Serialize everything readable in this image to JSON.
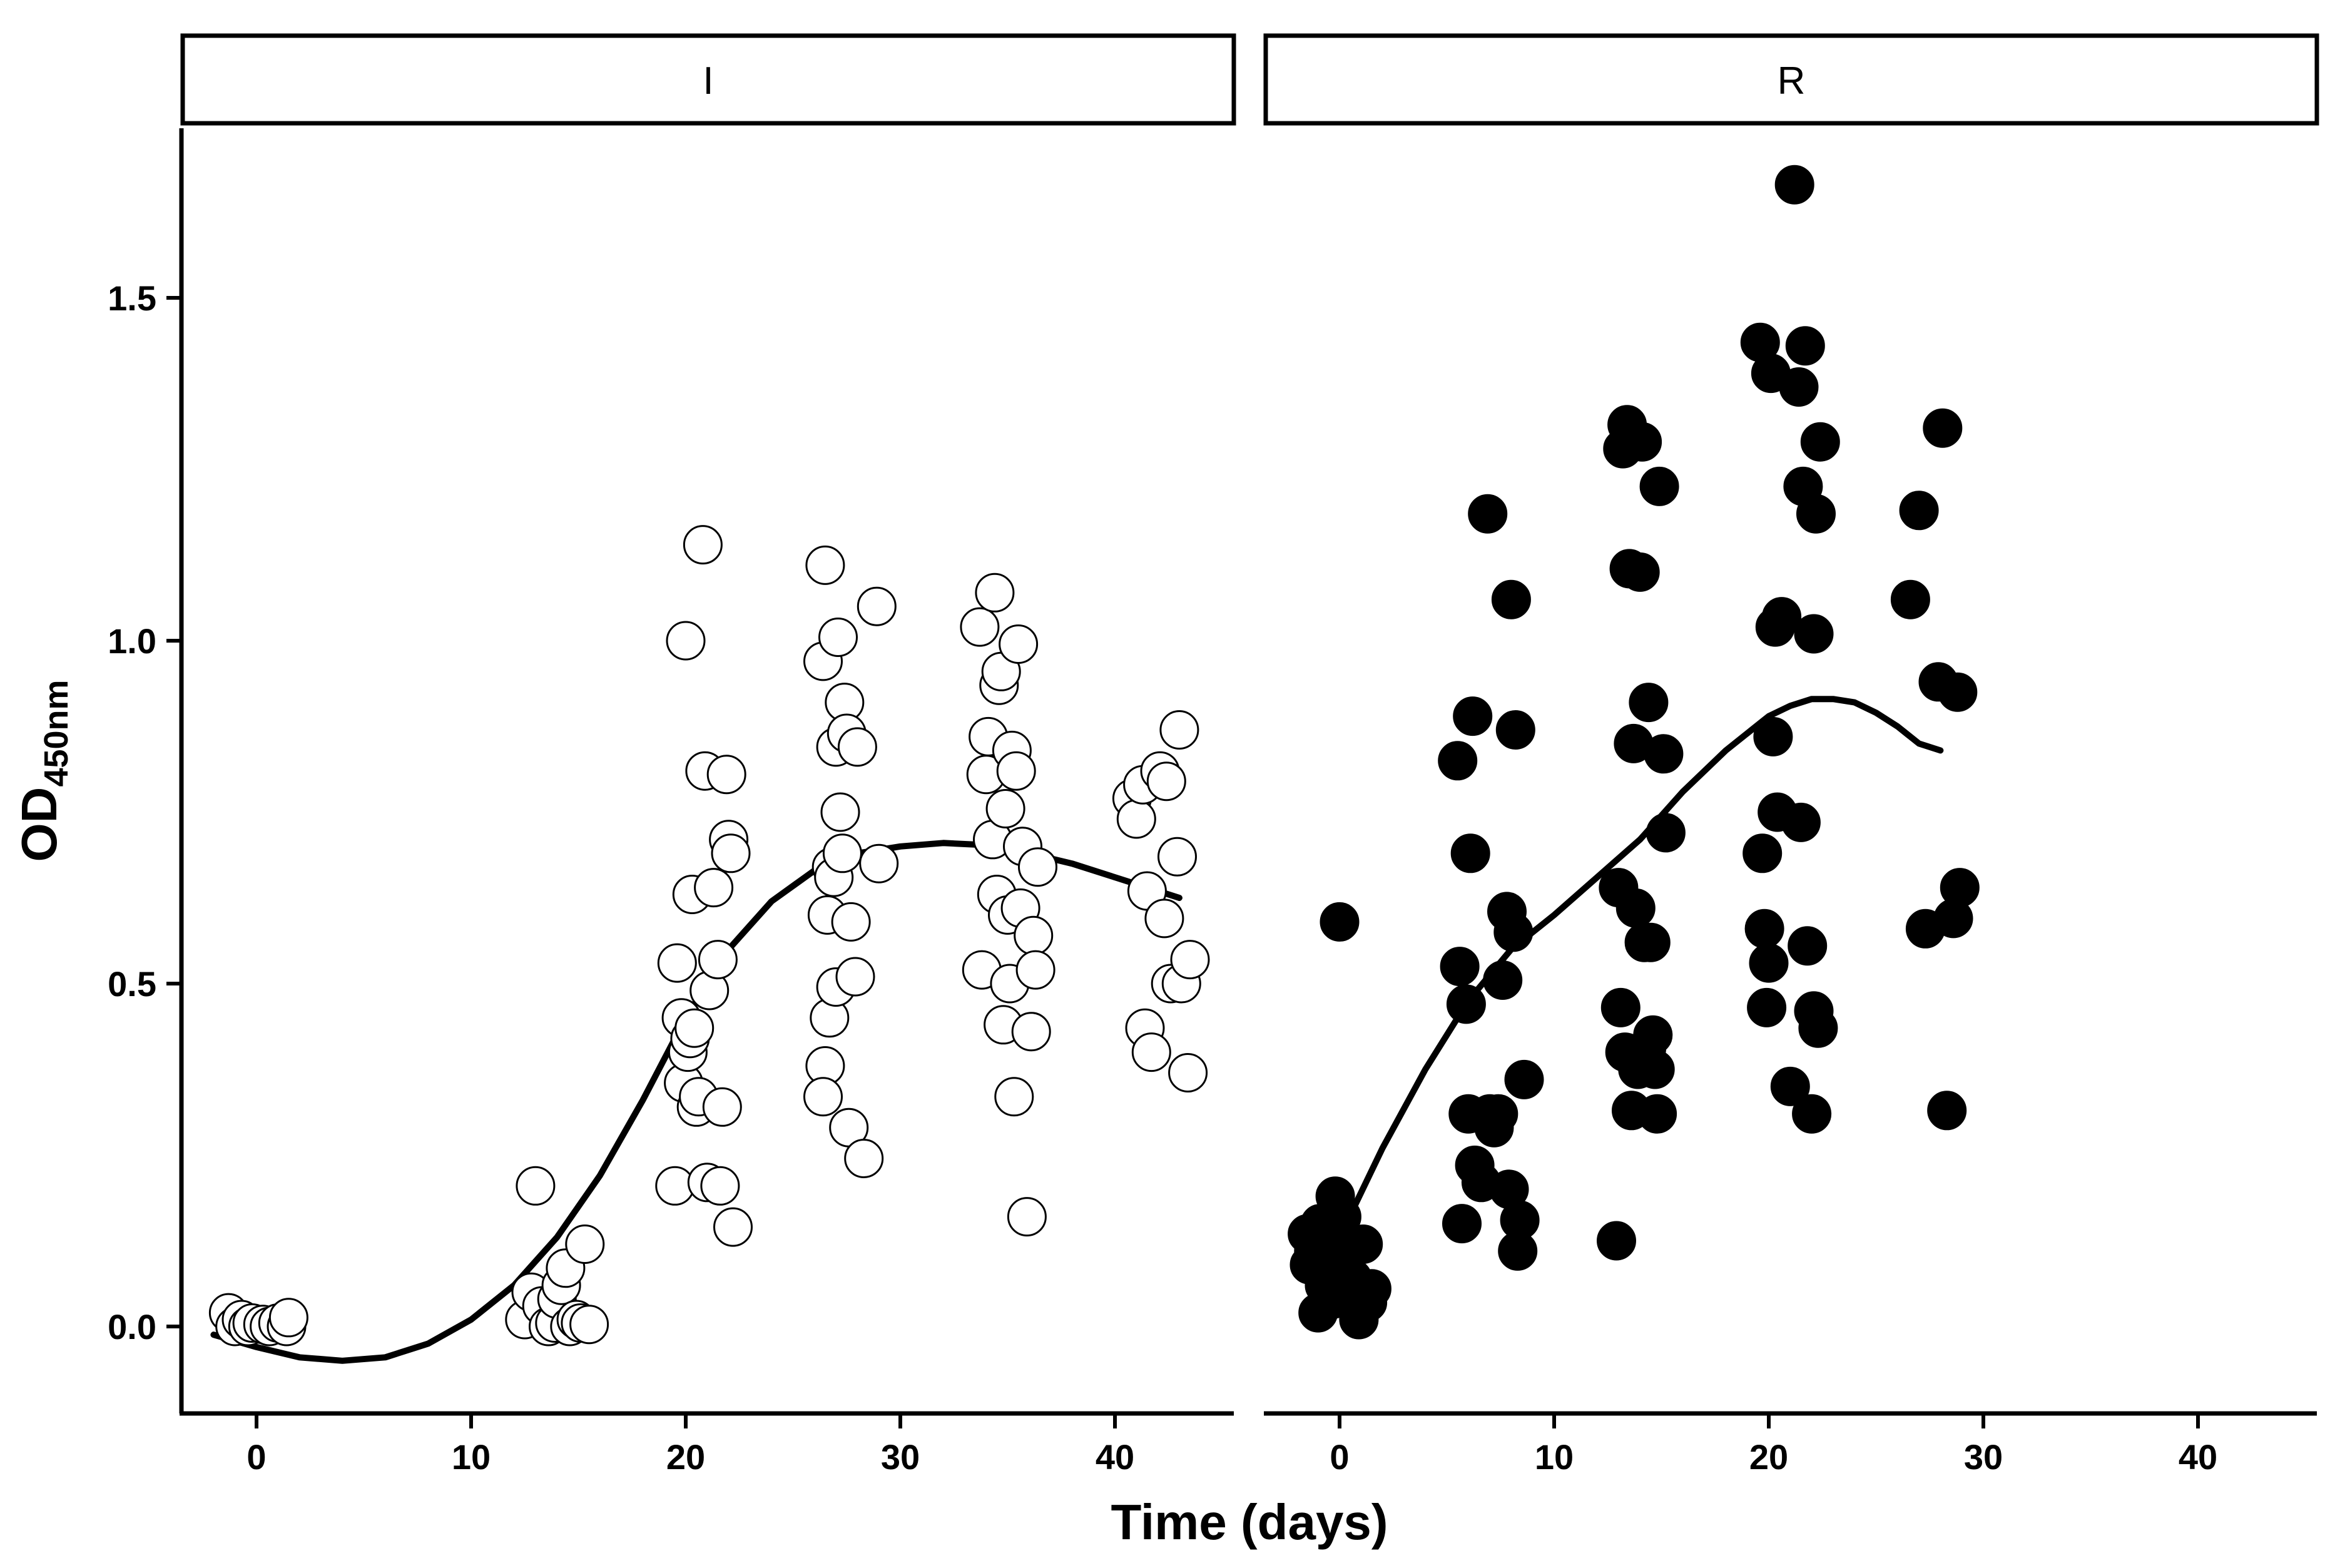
{
  "chart_data": {
    "type": "scatter",
    "xlabel": "Time (days)",
    "ylabel": {
      "main": "OD",
      "subscript": "450nm"
    },
    "xlim": [
      -3.5,
      45.5
    ],
    "ylim": [
      -0.13,
      1.75
    ],
    "xticks": [
      0,
      10,
      20,
      30,
      40
    ],
    "yticks": [
      0.0,
      0.5,
      1.0,
      1.5
    ],
    "xtick_labels": [
      "0",
      "10",
      "20",
      "30",
      "40"
    ],
    "ytick_labels": [
      "0.0",
      "0.5",
      "1.0",
      "1.5"
    ],
    "colors": {
      "I_fill": "#ffffff",
      "R_fill": "#000000",
      "stroke": "#000000",
      "fit_line": "#000000"
    },
    "panels": [
      {
        "strip": "I",
        "marker": "open-circle",
        "points": [
          [
            -1.3,
            0.02
          ],
          [
            -1.0,
            0.0
          ],
          [
            -0.7,
            0.01
          ],
          [
            -0.4,
            0.0
          ],
          [
            -0.2,
            0.005
          ],
          [
            0.3,
            0.003
          ],
          [
            0.6,
            0.0
          ],
          [
            1.0,
            0.005
          ],
          [
            1.4,
            0.0
          ],
          [
            1.5,
            0.013
          ],
          [
            12.5,
            0.01
          ],
          [
            12.8,
            0.05
          ],
          [
            13.0,
            0.205
          ],
          [
            13.3,
            0.03
          ],
          [
            13.6,
            0.0
          ],
          [
            13.9,
            0.005
          ],
          [
            14.0,
            0.04
          ],
          [
            14.2,
            0.06
          ],
          [
            14.4,
            0.085
          ],
          [
            14.6,
            0.0
          ],
          [
            14.9,
            0.01
          ],
          [
            15.1,
            0.005
          ],
          [
            15.3,
            0.12
          ],
          [
            15.5,
            0.003
          ],
          [
            19.6,
            0.53
          ],
          [
            19.8,
            0.45
          ],
          [
            19.5,
            0.205
          ],
          [
            20.0,
            1.0
          ],
          [
            19.9,
            0.355
          ],
          [
            20.1,
            0.4
          ],
          [
            20.2,
            0.42
          ],
          [
            20.4,
            0.435
          ],
          [
            20.3,
            0.63
          ],
          [
            20.5,
            0.32
          ],
          [
            20.6,
            0.335
          ],
          [
            20.8,
            1.14
          ],
          [
            20.9,
            0.81
          ],
          [
            21.0,
            0.21
          ],
          [
            21.1,
            0.49
          ],
          [
            21.3,
            0.64
          ],
          [
            21.5,
            0.535
          ],
          [
            21.6,
            0.205
          ],
          [
            21.7,
            0.32
          ],
          [
            21.9,
            0.805
          ],
          [
            22.0,
            0.71
          ],
          [
            22.1,
            0.69
          ],
          [
            22.2,
            0.145
          ],
          [
            26.5,
            1.11
          ],
          [
            26.4,
            0.97
          ],
          [
            26.6,
            0.6
          ],
          [
            26.5,
            0.38
          ],
          [
            26.4,
            0.335
          ],
          [
            26.7,
            0.45
          ],
          [
            26.8,
            0.67
          ],
          [
            26.9,
            0.655
          ],
          [
            27.0,
            0.845
          ],
          [
            27.1,
            1.005
          ],
          [
            27.2,
            0.75
          ],
          [
            27.3,
            0.69
          ],
          [
            27.4,
            0.91
          ],
          [
            27.5,
            0.865
          ],
          [
            27.0,
            0.495
          ],
          [
            27.6,
            0.29
          ],
          [
            27.7,
            0.59
          ],
          [
            27.9,
            0.51
          ],
          [
            28.0,
            0.845
          ],
          [
            28.3,
            0.245
          ],
          [
            28.9,
            1.05
          ],
          [
            29.0,
            0.675
          ],
          [
            33.7,
            1.02
          ],
          [
            33.8,
            0.52
          ],
          [
            34.0,
            0.805
          ],
          [
            34.1,
            0.86
          ],
          [
            34.3,
            0.71
          ],
          [
            34.5,
            0.63
          ],
          [
            34.4,
            1.07
          ],
          [
            34.6,
            0.935
          ],
          [
            34.7,
            0.955
          ],
          [
            34.8,
            0.44
          ],
          [
            34.9,
            0.755
          ],
          [
            35.0,
            0.6
          ],
          [
            35.1,
            0.5
          ],
          [
            35.2,
            0.84
          ],
          [
            35.3,
            0.335
          ],
          [
            35.4,
            0.81
          ],
          [
            35.5,
            0.995
          ],
          [
            35.6,
            0.61
          ],
          [
            35.7,
            0.7
          ],
          [
            35.9,
            0.16
          ],
          [
            36.1,
            0.43
          ],
          [
            36.2,
            0.57
          ],
          [
            36.3,
            0.52
          ],
          [
            36.4,
            0.67
          ],
          [
            40.8,
            0.77
          ],
          [
            41.0,
            0.74
          ],
          [
            41.3,
            0.79
          ],
          [
            41.5,
            0.635
          ],
          [
            41.4,
            0.435
          ],
          [
            41.7,
            0.4
          ],
          [
            42.1,
            0.81
          ],
          [
            42.3,
            0.595
          ],
          [
            42.4,
            0.795
          ],
          [
            42.6,
            0.5
          ],
          [
            42.9,
            0.685
          ],
          [
            43.0,
            0.87
          ],
          [
            43.1,
            0.5
          ],
          [
            43.4,
            0.37
          ],
          [
            43.5,
            0.535
          ]
        ],
        "fit": [
          [
            -2,
            -0.012
          ],
          [
            0,
            -0.03
          ],
          [
            2,
            -0.045
          ],
          [
            4,
            -0.05
          ],
          [
            6,
            -0.045
          ],
          [
            8,
            -0.025
          ],
          [
            10,
            0.01
          ],
          [
            12,
            0.06
          ],
          [
            14,
            0.13
          ],
          [
            16,
            0.22
          ],
          [
            18,
            0.33
          ],
          [
            20,
            0.45
          ],
          [
            22,
            0.55
          ],
          [
            24,
            0.62
          ],
          [
            26,
            0.665
          ],
          [
            28,
            0.69
          ],
          [
            30,
            0.7
          ],
          [
            32,
            0.705
          ],
          [
            34,
            0.702
          ],
          [
            36,
            0.69
          ],
          [
            38,
            0.675
          ],
          [
            40,
            0.655
          ],
          [
            42,
            0.635
          ],
          [
            43,
            0.625
          ]
        ]
      },
      {
        "strip": "R",
        "marker": "filled-circle",
        "points": [
          [
            -1.5,
            0.135
          ],
          [
            -1.4,
            0.09
          ],
          [
            -1.2,
            0.11
          ],
          [
            -1.0,
            0.02
          ],
          [
            -0.9,
            0.15
          ],
          [
            -0.7,
            0.06
          ],
          [
            -0.5,
            0.12
          ],
          [
            -0.3,
            0.04
          ],
          [
            -0.2,
            0.19
          ],
          [
            0.0,
            0.59
          ],
          [
            0.1,
            0.16
          ],
          [
            0.2,
            0.1
          ],
          [
            0.4,
            0.12
          ],
          [
            0.6,
            0.07
          ],
          [
            0.9,
            0.01
          ],
          [
            1.1,
            0.12
          ],
          [
            1.3,
            0.035
          ],
          [
            1.5,
            0.055
          ],
          [
            5.5,
            0.825
          ],
          [
            5.6,
            0.525
          ],
          [
            5.7,
            0.15
          ],
          [
            5.9,
            0.47
          ],
          [
            6.0,
            0.31
          ],
          [
            6.1,
            0.69
          ],
          [
            6.2,
            0.89
          ],
          [
            6.3,
            0.235
          ],
          [
            6.6,
            0.21
          ],
          [
            6.9,
            1.185
          ],
          [
            7.0,
            0.31
          ],
          [
            7.2,
            0.29
          ],
          [
            7.4,
            0.31
          ],
          [
            7.6,
            0.505
          ],
          [
            7.8,
            0.605
          ],
          [
            8.0,
            1.06
          ],
          [
            8.1,
            0.575
          ],
          [
            8.2,
            0.87
          ],
          [
            8.3,
            0.11
          ],
          [
            8.4,
            0.155
          ],
          [
            8.6,
            0.36
          ],
          [
            7.9,
            0.2
          ],
          [
            12.9,
            0.125
          ],
          [
            13.0,
            0.64
          ],
          [
            13.1,
            0.465
          ],
          [
            13.2,
            1.28
          ],
          [
            13.3,
            0.4
          ],
          [
            13.4,
            1.315
          ],
          [
            13.5,
            1.105
          ],
          [
            13.6,
            0.315
          ],
          [
            13.7,
            0.85
          ],
          [
            13.8,
            0.61
          ],
          [
            13.9,
            0.375
          ],
          [
            14.0,
            1.1
          ],
          [
            14.1,
            1.29
          ],
          [
            14.2,
            0.56
          ],
          [
            14.3,
            0.405
          ],
          [
            14.4,
            0.91
          ],
          [
            14.5,
            0.56
          ],
          [
            14.6,
            0.425
          ],
          [
            14.7,
            0.375
          ],
          [
            14.8,
            0.31
          ],
          [
            14.9,
            1.225
          ],
          [
            15.1,
            0.835
          ],
          [
            15.2,
            0.72
          ],
          [
            19.6,
            1.435
          ],
          [
            19.7,
            0.69
          ],
          [
            19.8,
            0.58
          ],
          [
            19.9,
            0.465
          ],
          [
            20.0,
            0.53
          ],
          [
            20.1,
            1.39
          ],
          [
            20.2,
            0.86
          ],
          [
            20.3,
            1.02
          ],
          [
            20.4,
            0.75
          ],
          [
            20.6,
            1.035
          ],
          [
            21.0,
            0.35
          ],
          [
            21.2,
            1.665
          ],
          [
            21.4,
            1.37
          ],
          [
            21.5,
            0.735
          ],
          [
            21.6,
            1.225
          ],
          [
            21.7,
            1.43
          ],
          [
            21.8,
            0.555
          ],
          [
            22.0,
            0.31
          ],
          [
            22.1,
            0.46
          ],
          [
            22.2,
            1.185
          ],
          [
            22.3,
            0.435
          ],
          [
            22.1,
            1.01
          ],
          [
            22.4,
            1.29
          ],
          [
            26.6,
            1.06
          ],
          [
            27.0,
            1.19
          ],
          [
            27.3,
            0.58
          ],
          [
            27.9,
            0.94
          ],
          [
            28.1,
            1.31
          ],
          [
            28.3,
            0.315
          ],
          [
            28.6,
            0.595
          ],
          [
            28.8,
            0.925
          ],
          [
            28.9,
            0.64
          ]
        ],
        "fit": [
          [
            0,
            0.13
          ],
          [
            2,
            0.26
          ],
          [
            4,
            0.375
          ],
          [
            6,
            0.475
          ],
          [
            8,
            0.55
          ],
          [
            10,
            0.6
          ],
          [
            12,
            0.655
          ],
          [
            14,
            0.71
          ],
          [
            16,
            0.78
          ],
          [
            18,
            0.84
          ],
          [
            20,
            0.89
          ],
          [
            21,
            0.905
          ],
          [
            22,
            0.915
          ],
          [
            23,
            0.915
          ],
          [
            24,
            0.91
          ],
          [
            25,
            0.895
          ],
          [
            26,
            0.875
          ],
          [
            27,
            0.85
          ],
          [
            28,
            0.84
          ]
        ]
      }
    ]
  }
}
